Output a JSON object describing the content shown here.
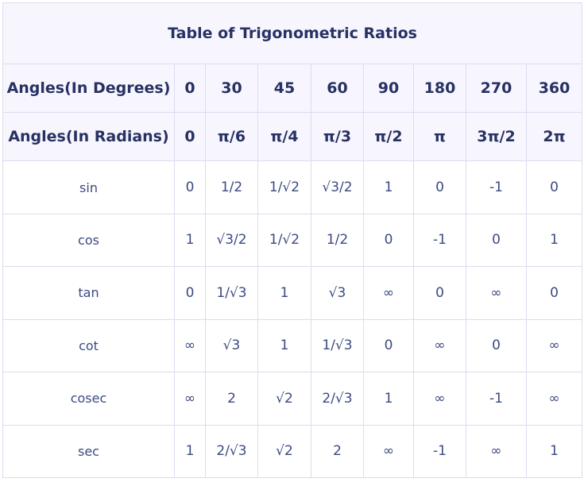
{
  "title": "Table of Trigonometric Ratios",
  "header_rows": [
    {
      "label": "Angles(In Degrees)",
      "cells": [
        "0",
        "30",
        "45",
        "60",
        "90",
        "180",
        "270",
        "360"
      ]
    },
    {
      "label": "Angles(In Radians)",
      "cells": [
        "0",
        "π/6",
        "π/4",
        "π/3",
        "π/2",
        "π",
        "3π/2",
        "2π"
      ]
    }
  ],
  "rows": [
    {
      "label": "sin",
      "cells": [
        "0",
        "1/2",
        "1/√2",
        "√3/2",
        "1",
        "0",
        "-1",
        "0"
      ]
    },
    {
      "label": "cos",
      "cells": [
        "1",
        "√3/2",
        "1/√2",
        "1/2",
        "0",
        "-1",
        "0",
        "1"
      ]
    },
    {
      "label": "tan",
      "cells": [
        "0",
        "1/√3",
        "1",
        "√3",
        "∞",
        "0",
        "∞",
        "0"
      ]
    },
    {
      "label": "cot",
      "cells": [
        "∞",
        "√3",
        "1",
        "1/√3",
        "0",
        "∞",
        "0",
        "∞"
      ]
    },
    {
      "label": "cosec",
      "cells": [
        "∞",
        "2",
        "√2",
        "2/√3",
        "1",
        "∞",
        "-1",
        "∞"
      ]
    },
    {
      "label": "sec",
      "cells": [
        "1",
        "2/√3",
        "√2",
        "2",
        "∞",
        "-1",
        "∞",
        "1"
      ]
    }
  ]
}
